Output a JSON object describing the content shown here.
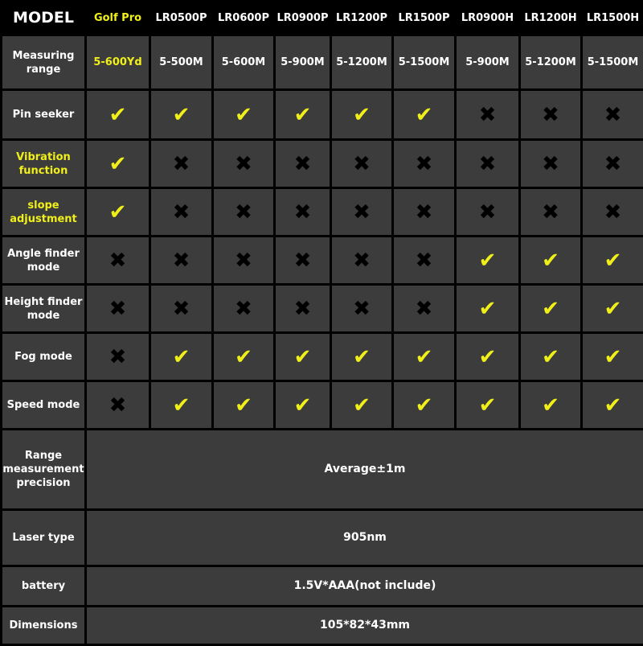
{
  "header": {
    "model_label": "MODEL",
    "models": [
      "Golf Pro",
      "LR0500P",
      "LR0600P",
      "LR0900P",
      "LR1200P",
      "LR1500P",
      "LR0900H",
      "LR1200H",
      "LR1500H"
    ],
    "highlight_model_index": 0
  },
  "measuring_range": {
    "label": "Measuring range",
    "values": [
      "5-600Yd",
      "5-500M",
      "5-600M",
      "5-900M",
      "5-1200M",
      "5-1500M",
      "5-900M",
      "5-1200M",
      "5-1500M"
    ]
  },
  "features": [
    {
      "label": "Pin seeker",
      "highlight": false,
      "marks": [
        "check",
        "check",
        "check",
        "check",
        "check",
        "check",
        "cross",
        "cross",
        "cross"
      ]
    },
    {
      "label": "Vibration function",
      "highlight": true,
      "marks": [
        "check",
        "cross",
        "cross",
        "cross",
        "cross",
        "cross",
        "cross",
        "cross",
        "cross"
      ]
    },
    {
      "label": "slope adjustment",
      "highlight": true,
      "marks": [
        "check",
        "cross",
        "cross",
        "cross",
        "cross",
        "cross",
        "cross",
        "cross",
        "cross"
      ]
    },
    {
      "label": "Angle finder mode",
      "highlight": false,
      "marks": [
        "cross",
        "cross",
        "cross",
        "cross",
        "cross",
        "cross",
        "check",
        "check",
        "check"
      ]
    },
    {
      "label": "Height finder mode",
      "highlight": false,
      "marks": [
        "cross",
        "cross",
        "cross",
        "cross",
        "cross",
        "cross",
        "check",
        "check",
        "check"
      ]
    },
    {
      "label": "Fog mode",
      "highlight": false,
      "marks": [
        "cross",
        "check",
        "check",
        "check",
        "check",
        "check",
        "check",
        "check",
        "check"
      ]
    },
    {
      "label": "Speed mode",
      "highlight": false,
      "marks": [
        "cross",
        "check",
        "check",
        "check",
        "check",
        "check",
        "check",
        "check",
        "check"
      ]
    }
  ],
  "icons": {
    "check": "checkmark-icon",
    "cross": "cross-icon"
  },
  "colors": {
    "accent": "#f0ef1a",
    "cell_bg": "#3c3c3c",
    "border": "#000000"
  },
  "shared": [
    {
      "label": "Range measurement precision",
      "value": "Average±1m"
    },
    {
      "label": "Laser type",
      "value": "905nm"
    },
    {
      "label": "battery",
      "value": "1.5V*AAA(not include)"
    },
    {
      "label": "Dimensions",
      "value": "105*82*43mm"
    }
  ]
}
